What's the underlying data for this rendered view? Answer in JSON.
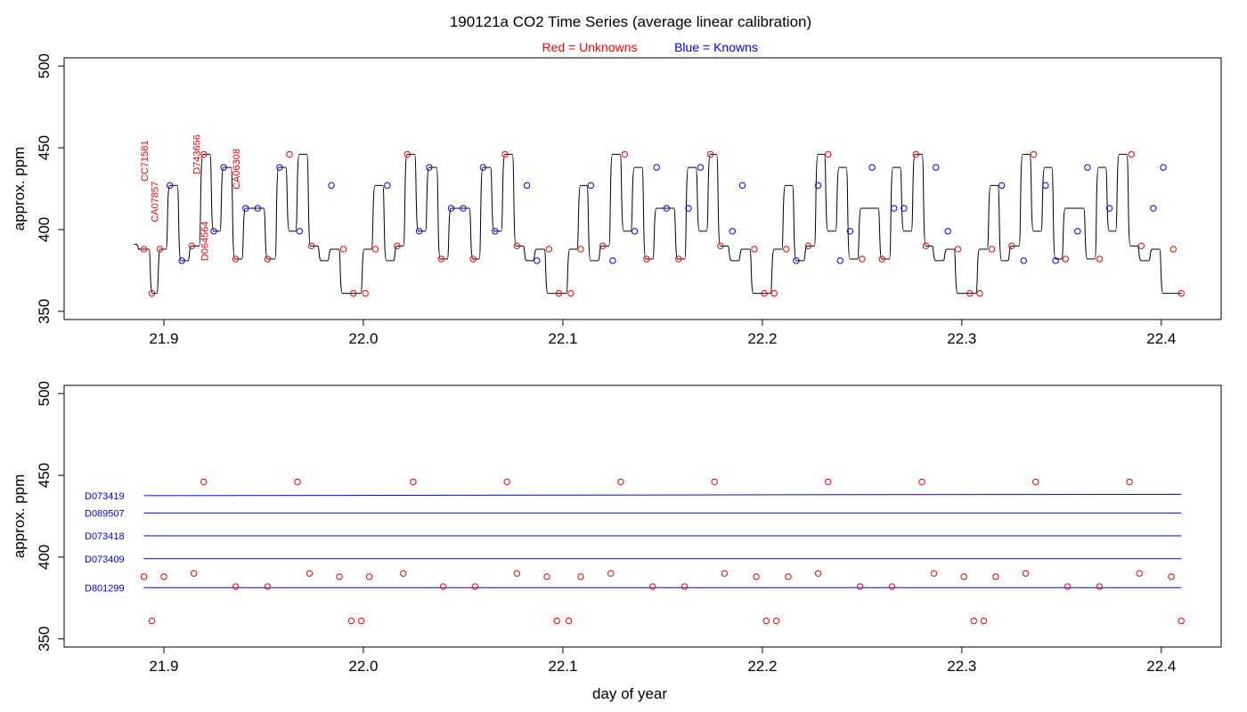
{
  "title": "190121a   CO2 Time Series (average linear calibration)",
  "legend": {
    "red_label": "Red = Unknowns",
    "blue_label": "Blue = Knowns",
    "red_color": "#ff0000",
    "blue_color": "#0000ff"
  },
  "xlabel": "day of year",
  "chart_data": [
    {
      "type": "line",
      "panel": "top",
      "title": "",
      "xlabel": "",
      "ylabel": "approx. ppm",
      "xlim": [
        21.85,
        22.43
      ],
      "ylim": [
        345,
        505
      ],
      "xticks": [
        "21.9",
        "22.0",
        "22.1",
        "22.2",
        "22.3",
        "22.4"
      ],
      "yticks": [
        "350",
        "400",
        "450",
        "500"
      ],
      "grid": false,
      "colors": {
        "trace": "#000000",
        "unknown": "#ff0000",
        "known": "#0000ff"
      },
      "trace": {
        "x": [
          21.885,
          21.887,
          21.89,
          21.894,
          21.898,
          21.903,
          21.909,
          21.914,
          21.92,
          21.925,
          21.93,
          21.936,
          21.941,
          21.947,
          21.952,
          21.958,
          21.963,
          21.968,
          21.974,
          21.979,
          21.984,
          21.99,
          21.995,
          22.001,
          22.006,
          22.012,
          22.017,
          22.022,
          22.028,
          22.033,
          22.039,
          22.044,
          22.05,
          22.055,
          22.06,
          22.066,
          22.071,
          22.077,
          22.082,
          22.087,
          22.093,
          22.098,
          22.104,
          22.109,
          22.114,
          22.12,
          22.125,
          22.131,
          22.136,
          22.142,
          22.147,
          22.152,
          22.158,
          22.163,
          22.169,
          22.174,
          22.179,
          22.185,
          22.19,
          22.196,
          22.201,
          22.206,
          22.212,
          22.217,
          22.223,
          22.228,
          22.233,
          22.239,
          22.244,
          22.25,
          22.255,
          22.26,
          22.266,
          22.271,
          22.277,
          22.282,
          22.287,
          22.293,
          22.298,
          22.304,
          22.309,
          22.315,
          22.32,
          22.325,
          22.331,
          22.336,
          22.342,
          22.347,
          22.352,
          22.358,
          22.363,
          22.369,
          22.374,
          22.379,
          22.385,
          22.39,
          22.396,
          22.401,
          22.406,
          22.41
        ],
        "y": [
          391,
          388,
          388,
          361,
          388,
          427,
          381,
          390,
          446,
          399,
          438,
          382,
          413,
          413,
          382,
          438,
          399,
          446,
          390,
          381,
          388,
          361,
          361,
          388,
          427,
          381,
          390,
          446,
          399,
          438,
          382,
          413,
          413,
          382,
          438,
          399,
          446,
          390,
          381,
          388,
          361,
          361,
          388,
          427,
          381,
          390,
          446,
          399,
          438,
          382,
          413,
          413,
          382,
          438,
          399,
          446,
          390,
          381,
          388,
          361,
          361,
          388,
          427,
          381,
          390,
          446,
          399,
          438,
          382,
          413,
          413,
          382,
          438,
          399,
          446,
          390,
          381,
          388,
          361,
          361,
          388,
          427,
          381,
          390,
          446,
          399,
          438,
          382,
          413,
          413,
          382,
          438,
          399,
          446,
          390,
          381,
          388,
          361,
          361,
          361
        ]
      },
      "unknown_points": {
        "x": [
          21.89,
          21.894,
          21.898,
          21.914,
          21.92,
          21.936,
          21.952,
          21.963,
          21.974,
          21.99,
          21.995,
          22.001,
          22.006,
          22.017,
          22.022,
          22.039,
          22.055,
          22.071,
          22.077,
          22.093,
          22.098,
          22.104,
          22.109,
          22.12,
          22.131,
          22.142,
          22.158,
          22.174,
          22.179,
          22.196,
          22.201,
          22.206,
          22.212,
          22.223,
          22.233,
          22.25,
          22.26,
          22.277,
          22.282,
          22.298,
          22.304,
          22.309,
          22.315,
          22.325,
          22.336,
          22.352,
          22.369,
          22.385,
          22.39,
          22.406,
          22.41
        ],
        "y": [
          388,
          361,
          388,
          390,
          446,
          382,
          382,
          446,
          390,
          388,
          361,
          361,
          388,
          390,
          446,
          382,
          382,
          446,
          390,
          388,
          361,
          361,
          388,
          390,
          446,
          382,
          382,
          446,
          390,
          388,
          361,
          361,
          388,
          390,
          446,
          382,
          382,
          446,
          390,
          388,
          361,
          361,
          388,
          390,
          446,
          382,
          382,
          446,
          390,
          388,
          361
        ]
      },
      "known_points": {
        "x": [
          21.903,
          21.909,
          21.925,
          21.93,
          21.941,
          21.947,
          21.958,
          21.968,
          21.984,
          22.012,
          22.028,
          22.033,
          22.044,
          22.05,
          22.06,
          22.066,
          22.082,
          22.087,
          22.114,
          22.125,
          22.136,
          22.147,
          22.152,
          22.163,
          22.169,
          22.185,
          22.19,
          22.217,
          22.228,
          22.239,
          22.244,
          22.255,
          22.266,
          22.271,
          22.287,
          22.293,
          22.32,
          22.331,
          22.342,
          22.347,
          22.358,
          22.363,
          22.374,
          22.396,
          22.401
        ],
        "y": [
          427,
          381,
          399,
          438,
          413,
          413,
          438,
          399,
          427,
          427,
          399,
          438,
          413,
          413,
          438,
          399,
          427,
          381,
          427,
          381,
          399,
          438,
          413,
          413,
          438,
          399,
          427,
          381,
          427,
          381,
          399,
          438,
          413,
          413,
          438,
          399,
          427,
          381,
          427,
          381,
          399,
          438,
          413,
          413,
          438
        ]
      },
      "annotations": [
        {
          "text": "CC71581",
          "x": 21.892,
          "y": 442,
          "color": "#ff0000"
        },
        {
          "text": "CA07857",
          "x": 21.897,
          "y": 417,
          "color": "#ff0000"
        },
        {
          "text": "D743656",
          "x": 21.918,
          "y": 446,
          "color": "#ff0000"
        },
        {
          "text": "D064564",
          "x": 21.922,
          "y": 393,
          "color": "#ff0000"
        },
        {
          "text": "CA06308",
          "x": 21.938,
          "y": 437,
          "color": "#ff0000"
        }
      ]
    },
    {
      "type": "scatter",
      "panel": "bottom",
      "title": "",
      "xlabel": "day of year",
      "ylabel": "approx. ppm",
      "xlim": [
        21.85,
        22.43
      ],
      "ylim": [
        345,
        505
      ],
      "xticks": [
        "21.9",
        "22.0",
        "22.1",
        "22.2",
        "22.3",
        "22.4"
      ],
      "yticks": [
        "350",
        "400",
        "450",
        "500"
      ],
      "grid": false,
      "colors": {
        "unknown": "#ff0000",
        "known": "#0000ff"
      },
      "points": {
        "x": [
          21.89,
          21.894,
          21.9,
          21.915,
          21.92,
          21.936,
          21.952,
          21.967,
          21.973,
          21.988,
          21.994,
          21.999,
          22.003,
          22.02,
          22.025,
          22.04,
          22.056,
          22.072,
          22.077,
          22.092,
          22.097,
          22.103,
          22.109,
          22.124,
          22.129,
          22.145,
          22.161,
          22.176,
          22.181,
          22.197,
          22.202,
          22.207,
          22.213,
          22.228,
          22.233,
          22.249,
          22.265,
          22.28,
          22.286,
          22.301,
          22.306,
          22.311,
          22.317,
          22.332,
          22.337,
          22.353,
          22.369,
          22.384,
          22.389,
          22.405,
          22.41
        ],
        "y": [
          388,
          361,
          388,
          390,
          446,
          382,
          382,
          446,
          390,
          388,
          361,
          361,
          388,
          390,
          446,
          382,
          382,
          446,
          390,
          388,
          361,
          361,
          388,
          390,
          446,
          382,
          382,
          446,
          390,
          388,
          361,
          361,
          388,
          390,
          446,
          382,
          382,
          446,
          390,
          388,
          361,
          361,
          388,
          390,
          446,
          382,
          382,
          446,
          390,
          388,
          361
        ]
      },
      "reference_lines": [
        {
          "name": "D073419",
          "y0": 437.6,
          "y1": 438.4,
          "color": "#0000ff"
        },
        {
          "name": "D089507",
          "y0": 427.0,
          "y1": 427.0,
          "color": "#0000ff"
        },
        {
          "name": "D073418",
          "y0": 413.0,
          "y1": 413.0,
          "color": "#0000ff"
        },
        {
          "name": "D073409",
          "y0": 399.0,
          "y1": 399.0,
          "color": "#0000ff"
        },
        {
          "name": "D801299",
          "y0": 381.3,
          "y1": 381.3,
          "color": "#0000ff"
        }
      ],
      "line_x_range": [
        21.89,
        22.41
      ]
    }
  ]
}
